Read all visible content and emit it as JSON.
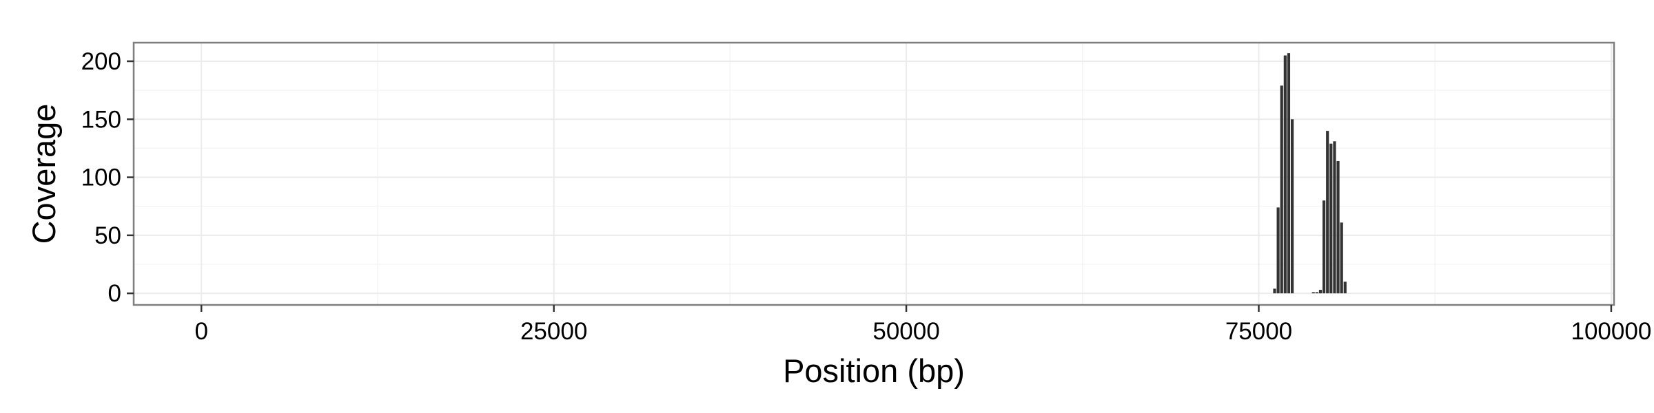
{
  "chart_data": {
    "type": "bar",
    "title": "",
    "xlabel": "Position (bp)",
    "ylabel": "Coverage",
    "xlim": [
      -4800,
      100200
    ],
    "ylim": [
      -10,
      216
    ],
    "x_ticks": [
      0,
      25000,
      50000,
      75000,
      100000
    ],
    "x_tick_labels": [
      "0",
      "25000",
      "50000",
      "75000",
      "100000"
    ],
    "y_ticks": [
      0,
      50,
      100,
      150,
      200
    ],
    "y_tick_labels": [
      "0",
      "50",
      "100",
      "150",
      "200"
    ],
    "grid": true,
    "legend": "none",
    "bin_width_bp": 250,
    "bar_color": "#333333",
    "x": [
      76000,
      76250,
      76500,
      76750,
      77000,
      77250,
      78750,
      79000,
      79250,
      79500,
      79750,
      80000,
      80250,
      80500,
      80750,
      81000
    ],
    "values": [
      4,
      74,
      179,
      205,
      207,
      150,
      1,
      1,
      3,
      80,
      140,
      129,
      131,
      114,
      61,
      10
    ]
  },
  "colors": {
    "panel_border": "#7f7f7f",
    "grid_major": "#ebebeb",
    "grid_minor": "#f5f5f5",
    "axis_tick": "#333333"
  }
}
